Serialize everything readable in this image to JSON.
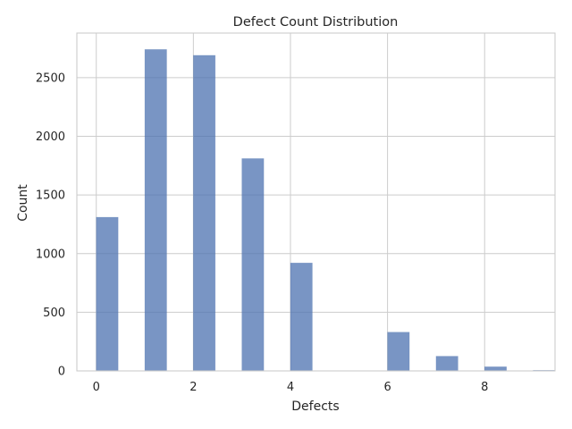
{
  "chart_data": {
    "type": "bar",
    "title": "Defect Count Distribution",
    "xlabel": "Defects",
    "ylabel": "Count",
    "x": [
      0,
      1,
      2,
      3,
      4,
      5,
      6,
      7,
      8,
      9
    ],
    "values": [
      1310,
      2740,
      2690,
      1810,
      920,
      0,
      330,
      125,
      35,
      5
    ],
    "bin_width": 0.45,
    "xlim": [
      -0.4,
      9.45
    ],
    "ylim": [
      0,
      2880
    ],
    "xticks": [
      0,
      2,
      4,
      6,
      8
    ],
    "yticks": [
      0,
      500,
      1000,
      1500,
      2000,
      2500
    ],
    "grid": true,
    "colors": {
      "bar": "#4c72b0",
      "grid": "#cccccc",
      "text": "#262626"
    }
  }
}
